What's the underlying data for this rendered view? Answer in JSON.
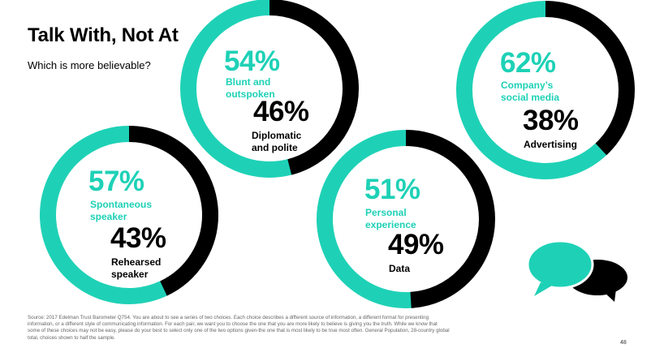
{
  "title": "Talk With, Not At",
  "subtitle": "Which is more believable?",
  "colors": {
    "accent": "#1ed1b6",
    "dark": "#000000"
  },
  "chart_data": [
    {
      "type": "pie",
      "slices": [
        {
          "label": "Blunt and outspoken",
          "value": 54,
          "display": "54%"
        },
        {
          "label": "Diplomatic and polite",
          "value": 46,
          "display": "46%"
        }
      ]
    },
    {
      "type": "pie",
      "slices": [
        {
          "label": "Spontaneous speaker",
          "value": 57,
          "display": "57%"
        },
        {
          "label": "Rehearsed speaker",
          "value": 43,
          "display": "43%"
        }
      ]
    },
    {
      "type": "pie",
      "slices": [
        {
          "label": "Personal experience",
          "value": 51,
          "display": "51%"
        },
        {
          "label": "Data",
          "value": 49,
          "display": "49%"
        }
      ]
    },
    {
      "type": "pie",
      "slices": [
        {
          "label": "Company's social media",
          "value": 62,
          "display": "62%"
        },
        {
          "label": "Advertising",
          "value": 38,
          "display": "38%"
        }
      ]
    }
  ],
  "donut_labels": [
    {
      "a_lines": [
        "Blunt and",
        "outspoken"
      ],
      "b_lines": [
        "Diplomatic",
        "and polite"
      ]
    },
    {
      "a_lines": [
        "Spontaneous",
        "speaker"
      ],
      "b_lines": [
        "Rehearsed",
        "speaker"
      ]
    },
    {
      "a_lines": [
        "Personal",
        "experience"
      ],
      "b_lines": [
        "Data"
      ]
    },
    {
      "a_lines": [
        "Company’s",
        "social media"
      ],
      "b_lines": [
        "Advertising"
      ]
    }
  ],
  "icon": "speech-bubbles-icon",
  "source": "Source: 2017 Edelman Trust Barometer Q754. You are about to see a series of two choices. Each choice describes a different source of information, a different format for presenting information, or a different style of communicating information. For each pair, we want you to choose the one that you are more likely to believe is giving you the truth. While we know that some of these choices may not be easy, please do your best to select only one of the two options given-the one that is most likely to be true most often. General Population, 28-country global total, choices shown to half the sample.",
  "page_number": "48"
}
